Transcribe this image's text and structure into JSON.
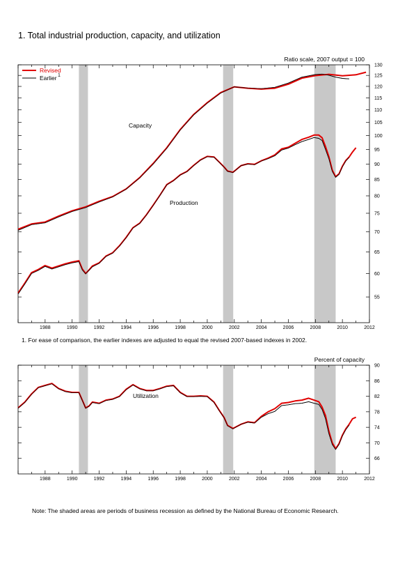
{
  "title": "1. Total industrial production, capacity, and utilization",
  "footnote": "1. For ease of comparison, the earlier indexes are adjusted to equal the revised 2007-based indexes in 2002.",
  "note": "Note: The shaded areas are periods of business recession as defined by the National Bureau of Economic Research.",
  "colors": {
    "revised": "#e00000",
    "earlier": "#000000",
    "recession": "#c8c8c8"
  },
  "chart_data": [
    {
      "type": "line",
      "y_scale": "log",
      "ylim": [
        50,
        130
      ],
      "xlim": [
        1986.0,
        2012.0
      ],
      "y_ticks": [
        55,
        60,
        65,
        70,
        75,
        80,
        85,
        90,
        95,
        100,
        105,
        110,
        115,
        120,
        125,
        130
      ],
      "x_ticks": [
        "1988",
        "1990",
        "1992",
        "1994",
        "1996",
        "1998",
        "2000",
        "2002",
        "2004",
        "2006",
        "2008",
        "2010",
        "2012"
      ],
      "ylabel": "Ratio scale, 2007 output = 100",
      "legend": {
        "placement": "top-left",
        "revised_label": "Revised",
        "earlier_label": "Earlier",
        "earlier_sup": "1"
      },
      "recessions": [
        [
          1990.5,
          1991.17
        ],
        [
          2001.17,
          2001.92
        ],
        [
          2007.92,
          2009.5
        ]
      ],
      "annotations": {
        "capacity": "Capacity",
        "production": "Production"
      },
      "series": [
        {
          "name": "Capacity",
          "role": "revised",
          "x": [
            1986.0,
            1987.0,
            1988.0,
            1989.0,
            1990.0,
            1991.0,
            1992.0,
            1993.0,
            1994.0,
            1995.0,
            1996.0,
            1997.0,
            1998.0,
            1999.0,
            2000.0,
            2001.0,
            2002.0,
            2003.0,
            2004.0,
            2005.0,
            2006.0,
            2007.0,
            2008.0,
            2009.0,
            2010.0,
            2011.0,
            2011.75
          ],
          "values": [
            70.7,
            72.1,
            72.6,
            74.2,
            75.7,
            76.8,
            78.4,
            79.8,
            82.1,
            85.6,
            90.2,
            95.6,
            102.3,
            108.2,
            113.0,
            117.3,
            119.8,
            119.2,
            118.8,
            119.2,
            121.0,
            123.7,
            124.9,
            125.5,
            124.8,
            125.3,
            126.5
          ]
        },
        {
          "name": "Capacity",
          "role": "earlier",
          "x": [
            1986.0,
            1987.0,
            1988.0,
            1989.0,
            1990.0,
            1991.0,
            1992.0,
            1993.0,
            1994.0,
            1995.0,
            1996.0,
            1997.0,
            1998.0,
            1999.0,
            2000.0,
            2001.0,
            2002.0,
            2003.0,
            2004.0,
            2005.0,
            2006.0,
            2007.0,
            2008.0,
            2008.5,
            2009.0,
            2009.5,
            2010.0,
            2010.5
          ],
          "values": [
            70.4,
            71.9,
            72.4,
            74.0,
            75.5,
            76.6,
            78.2,
            79.7,
            82.0,
            85.5,
            90.0,
            95.4,
            102.1,
            108.0,
            112.8,
            117.1,
            119.8,
            119.3,
            119.0,
            119.6,
            121.5,
            124.2,
            125.4,
            125.6,
            125.1,
            124.2,
            123.6,
            123.4
          ]
        },
        {
          "name": "Production",
          "role": "revised",
          "x": [
            1986.0,
            1986.5,
            1987.0,
            1987.5,
            1988.0,
            1988.5,
            1989.0,
            1989.5,
            1990.0,
            1990.5,
            1990.75,
            1991.0,
            1991.25,
            1991.5,
            1992.0,
            1992.5,
            1993.0,
            1993.5,
            1994.0,
            1994.5,
            1995.0,
            1995.5,
            1996.0,
            1996.5,
            1997.0,
            1997.5,
            1998.0,
            1998.5,
            1999.0,
            1999.5,
            2000.0,
            2000.5,
            2000.9,
            2001.25,
            2001.5,
            2001.9,
            2002.5,
            2003.0,
            2003.5,
            2004.0,
            2004.5,
            2005.0,
            2005.5,
            2006.0,
            2006.5,
            2007.0,
            2007.5,
            2007.9,
            2008.25,
            2008.5,
            2008.75,
            2009.0,
            2009.25,
            2009.5,
            2009.75,
            2010.0,
            2010.25,
            2010.5,
            2010.75,
            2011.0
          ],
          "values": [
            55.8,
            57.9,
            60.2,
            60.9,
            61.8,
            61.2,
            61.7,
            62.2,
            62.6,
            62.9,
            61.0,
            60.0,
            60.8,
            61.7,
            62.4,
            64.0,
            64.8,
            66.5,
            68.6,
            71.1,
            72.3,
            74.6,
            77.3,
            80.2,
            83.4,
            84.7,
            86.5,
            87.6,
            89.6,
            91.4,
            92.6,
            92.4,
            90.6,
            89.0,
            87.7,
            87.3,
            89.5,
            90.1,
            89.9,
            91.1,
            92.0,
            93.1,
            95.2,
            95.8,
            97.2,
            98.6,
            99.4,
            100.2,
            100.2,
            99.2,
            96.0,
            92.5,
            88.0,
            85.9,
            86.8,
            89.3,
            91.2,
            92.4,
            94.1,
            95.6
          ]
        },
        {
          "name": "Production",
          "role": "earlier",
          "x": [
            1986.0,
            1986.5,
            1987.0,
            1987.5,
            1988.0,
            1988.5,
            1989.0,
            1989.5,
            1990.0,
            1990.5,
            1990.75,
            1991.0,
            1991.25,
            1991.5,
            1992.0,
            1992.5,
            1993.0,
            1993.5,
            1994.0,
            1994.5,
            1995.0,
            1995.5,
            1996.0,
            1996.5,
            1997.0,
            1997.5,
            1998.0,
            1998.5,
            1999.0,
            1999.5,
            2000.0,
            2000.5,
            2000.9,
            2001.25,
            2001.5,
            2001.9,
            2002.5,
            2003.0,
            2003.5,
            2004.0,
            2004.5,
            2005.0,
            2005.5,
            2006.0,
            2006.5,
            2007.0,
            2007.5,
            2007.9,
            2008.25,
            2008.5,
            2008.75,
            2009.0,
            2009.25,
            2009.5,
            2009.75,
            2010.0,
            2010.25,
            2010.5
          ],
          "values": [
            55.6,
            57.7,
            60.0,
            60.7,
            61.6,
            61.0,
            61.5,
            62.0,
            62.4,
            62.7,
            60.8,
            59.9,
            60.7,
            61.5,
            62.3,
            63.9,
            64.7,
            66.4,
            68.5,
            71.0,
            72.2,
            74.5,
            77.2,
            80.1,
            83.3,
            84.6,
            86.4,
            87.5,
            89.5,
            91.3,
            92.5,
            92.3,
            90.5,
            88.9,
            87.6,
            87.2,
            89.5,
            90.0,
            89.8,
            91.0,
            91.8,
            92.8,
            94.8,
            95.5,
            96.7,
            97.8,
            98.6,
            99.3,
            99.0,
            98.2,
            95.0,
            91.8,
            87.6,
            85.7,
            86.6,
            89.1,
            91.0,
            92.3
          ]
        }
      ]
    },
    {
      "type": "line",
      "ylim": [
        62,
        90
      ],
      "xlim": [
        1986.0,
        2012.0
      ],
      "y_ticks": [
        66,
        70,
        74,
        78,
        82,
        86,
        90
      ],
      "x_ticks": [
        "1988",
        "1990",
        "1992",
        "1994",
        "1996",
        "1998",
        "2000",
        "2002",
        "2004",
        "2006",
        "2008",
        "2010",
        "2012"
      ],
      "ylabel": "Percent of capacity",
      "recessions": [
        [
          1990.5,
          1991.17
        ],
        [
          2001.17,
          2001.92
        ],
        [
          2007.92,
          2009.5
        ]
      ],
      "annotations": {
        "utilization": "Utilization"
      },
      "series": [
        {
          "name": "Utilization",
          "role": "revised",
          "x": [
            1986.0,
            1986.5,
            1987.0,
            1987.5,
            1988.0,
            1988.5,
            1989.0,
            1989.5,
            1990.0,
            1990.5,
            1990.75,
            1991.0,
            1991.25,
            1991.5,
            1992.0,
            1992.5,
            1993.0,
            1993.5,
            1994.0,
            1994.5,
            1995.0,
            1995.5,
            1996.0,
            1996.5,
            1997.0,
            1997.5,
            1998.0,
            1998.5,
            1999.0,
            1999.5,
            2000.0,
            2000.5,
            2000.9,
            2001.25,
            2001.5,
            2001.9,
            2002.5,
            2003.0,
            2003.5,
            2004.0,
            2004.5,
            2005.0,
            2005.5,
            2006.0,
            2006.5,
            2007.0,
            2007.5,
            2007.9,
            2008.25,
            2008.5,
            2008.75,
            2009.0,
            2009.25,
            2009.5,
            2009.75,
            2010.0,
            2010.25,
            2010.5,
            2010.75,
            2011.0
          ],
          "values": [
            79.0,
            80.5,
            82.6,
            84.3,
            84.8,
            85.3,
            84.0,
            83.3,
            83.0,
            83.0,
            81.0,
            79.0,
            79.5,
            80.5,
            80.2,
            81.0,
            81.3,
            82.0,
            83.8,
            85.0,
            84.0,
            83.5,
            83.5,
            84.0,
            84.6,
            84.8,
            83.0,
            82.0,
            82.0,
            82.1,
            82.0,
            80.5,
            78.3,
            76.5,
            74.5,
            73.7,
            74.8,
            75.4,
            75.2,
            76.8,
            78.0,
            78.8,
            80.2,
            80.4,
            80.8,
            81.0,
            81.5,
            81.0,
            80.6,
            79.2,
            77.0,
            73.0,
            70.0,
            68.5,
            69.8,
            72.0,
            73.6,
            74.8,
            76.2,
            76.6
          ]
        },
        {
          "name": "Utilization",
          "role": "earlier",
          "x": [
            1986.0,
            1986.5,
            1987.0,
            1987.5,
            1988.0,
            1988.5,
            1989.0,
            1989.5,
            1990.0,
            1990.5,
            1990.75,
            1991.0,
            1991.25,
            1991.5,
            1992.0,
            1992.5,
            1993.0,
            1993.5,
            1994.0,
            1994.5,
            1995.0,
            1995.5,
            1996.0,
            1996.5,
            1997.0,
            1997.5,
            1998.0,
            1998.5,
            1999.0,
            1999.5,
            2000.0,
            2000.5,
            2000.9,
            2001.25,
            2001.5,
            2001.9,
            2002.5,
            2003.0,
            2003.5,
            2004.0,
            2004.5,
            2005.0,
            2005.5,
            2006.0,
            2006.5,
            2007.0,
            2007.5,
            2007.9,
            2008.25,
            2008.5,
            2008.75,
            2009.0,
            2009.25,
            2009.5,
            2009.75,
            2010.0,
            2010.25,
            2010.5
          ],
          "values": [
            78.9,
            80.4,
            82.5,
            84.2,
            84.7,
            85.2,
            83.9,
            83.2,
            82.9,
            82.9,
            80.9,
            78.9,
            79.4,
            80.4,
            80.1,
            80.9,
            81.2,
            81.9,
            83.7,
            84.9,
            83.9,
            83.4,
            83.4,
            83.9,
            84.5,
            84.7,
            82.9,
            81.9,
            81.9,
            82.0,
            81.9,
            80.4,
            78.2,
            76.4,
            74.4,
            73.6,
            74.8,
            75.3,
            75.1,
            76.6,
            77.5,
            78.1,
            79.6,
            79.8,
            80.1,
            80.2,
            80.6,
            80.2,
            79.9,
            78.6,
            76.2,
            72.4,
            69.6,
            68.3,
            69.6,
            71.8,
            73.4,
            74.6
          ]
        }
      ]
    }
  ]
}
